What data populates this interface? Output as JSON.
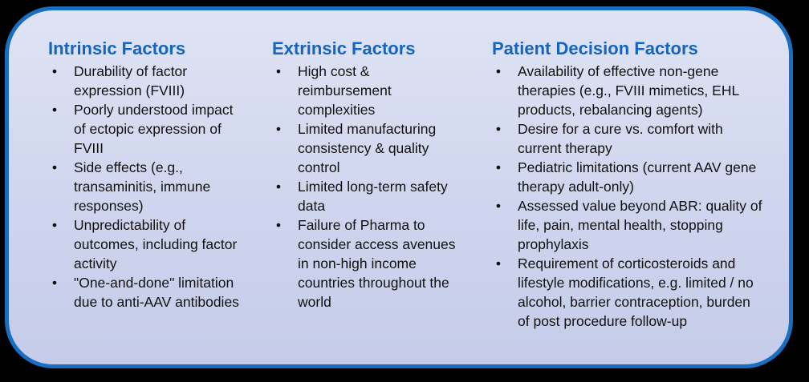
{
  "columns": [
    {
      "heading": "Intrinsic Factors",
      "items": [
        "Durability of factor expression (FVIII)",
        "Poorly understood impact of ectopic expression of FVIII",
        "Side effects (e.g., transaminitis, immune responses)",
        "Unpredictability of outcomes, including factor activity",
        "\"One-and-done\" limitation due to anti-AAV antibodies"
      ]
    },
    {
      "heading": "Extrinsic Factors",
      "items": [
        "High cost & reimbursement complexities",
        "Limited manufacturing consistency & quality control",
        "Limited long-term safety data",
        "Failure of Pharma to consider access avenues in non-high income countries throughout the world"
      ]
    },
    {
      "heading": "Patient Decision Factors",
      "items": [
        "Availability of effective non-gene therapies (e.g., FVIII mimetics, EHL products, rebalancing agents)",
        "Desire for a cure vs. comfort with current therapy",
        "Pediatric limitations (current AAV gene therapy adult-only)",
        "Assessed value beyond ABR: quality of life, pain, mental health, stopping prophylaxis",
        "Requirement of corticosteroids and lifestyle modifications, e.g. limited / no alcohol, barrier contraception, burden of post procedure follow-up"
      ]
    }
  ],
  "bullet_symbol": "•",
  "colors": {
    "heading": "#1565c0",
    "border": "#1a6ec0",
    "panel_fill": "#d4d9ef",
    "background": "#000000"
  }
}
